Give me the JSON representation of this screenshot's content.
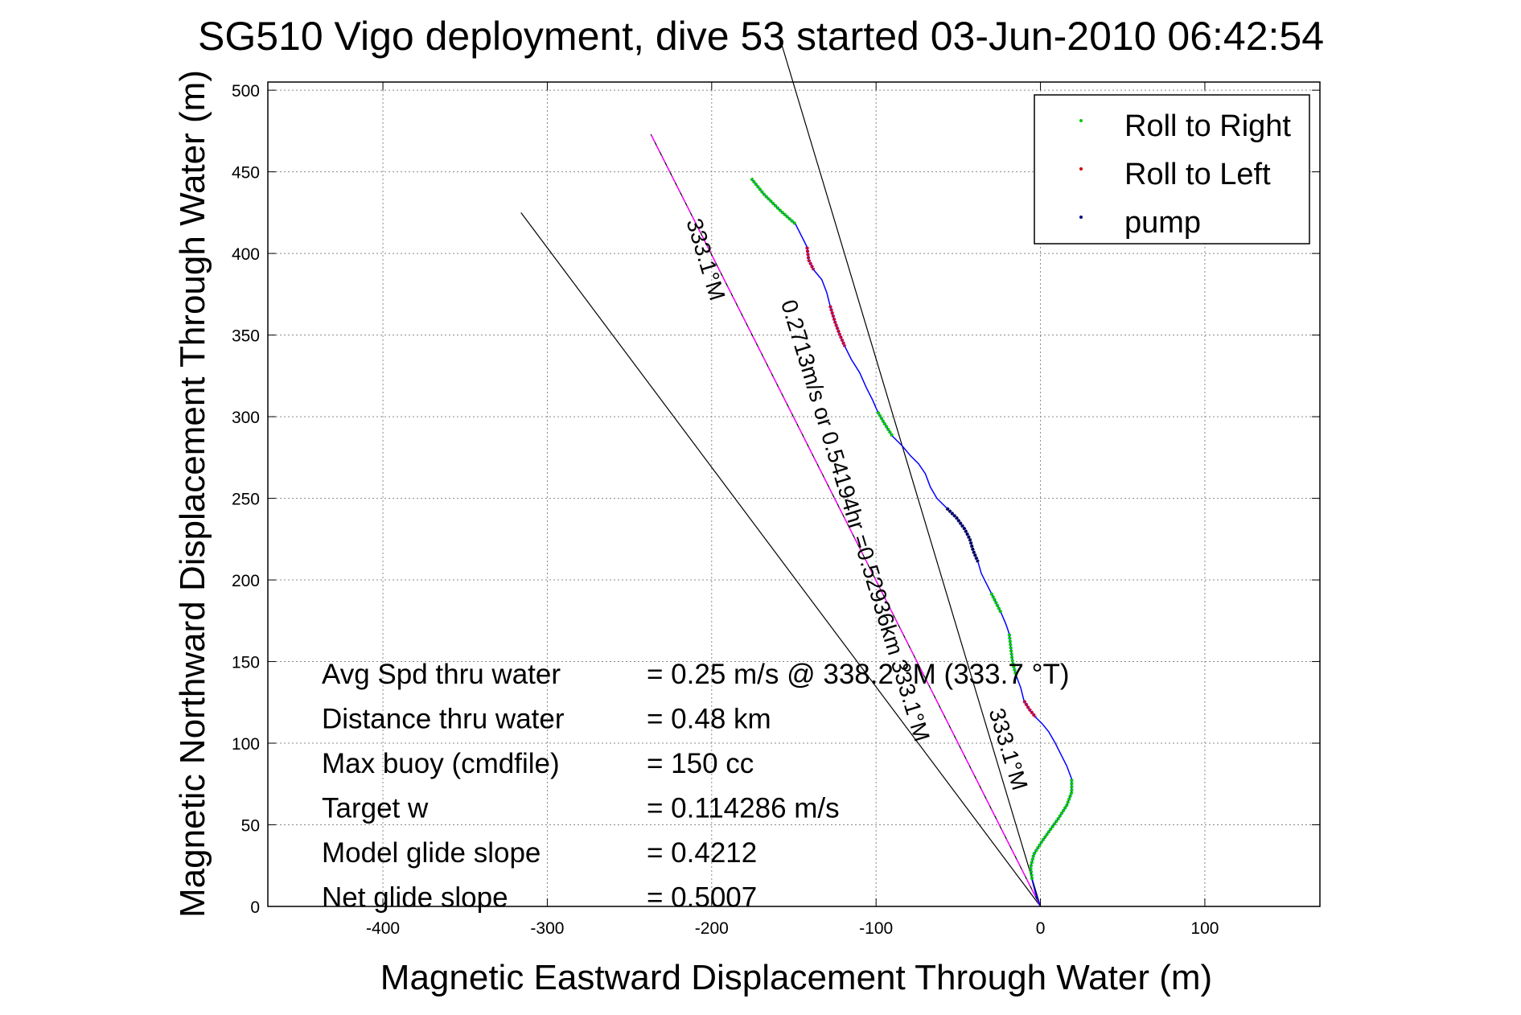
{
  "chart_data": {
    "type": "line",
    "title": "SG510 Vigo deployment, dive 53 started 03-Jun-2010 06:42:54",
    "xlabel": "Magnetic Eastward Displacement Through Water (m)",
    "ylabel": "Magnetic Northward Displacement Through Water (m)",
    "xlim": [
      -470,
      170
    ],
    "ylim": [
      0,
      505
    ],
    "x_ticks": [
      -400,
      -300,
      -200,
      -100,
      0,
      100
    ],
    "x_tick_labels": [
      "-400",
      "-300",
      "-200",
      "-100",
      "0",
      "100"
    ],
    "y_ticks": [
      0,
      50,
      100,
      150,
      200,
      250,
      300,
      350,
      400,
      450,
      500
    ],
    "y_tick_labels": [
      "0",
      "50",
      "100",
      "150",
      "200",
      "250",
      "300",
      "350",
      "400",
      "450",
      "500"
    ],
    "grid": true,
    "legend_position": "top-right",
    "legend": [
      {
        "label": "Roll to Right",
        "color": "#00cc00"
      },
      {
        "label": "Roll to Left",
        "color": "#cc0000"
      },
      {
        "label": "pump",
        "color": "#000080"
      }
    ],
    "track": {
      "color": "#0000ff",
      "points": [
        [
          -176,
          446
        ],
        [
          -168,
          436
        ],
        [
          -158,
          426
        ],
        [
          -149,
          418
        ],
        [
          -145,
          410
        ],
        [
          -142,
          404
        ],
        [
          -141,
          396
        ],
        [
          -138,
          390
        ],
        [
          -133,
          384
        ],
        [
          -130,
          376
        ],
        [
          -128,
          368
        ],
        [
          -125,
          358
        ],
        [
          -122,
          350
        ],
        [
          -119,
          343
        ],
        [
          -115,
          335
        ],
        [
          -110,
          327
        ],
        [
          -106,
          318
        ],
        [
          -102,
          310
        ],
        [
          -99,
          303
        ],
        [
          -95,
          296
        ],
        [
          -90,
          288
        ],
        [
          -84,
          282
        ],
        [
          -79,
          276
        ],
        [
          -74,
          271
        ],
        [
          -70,
          265
        ],
        [
          -67,
          257
        ],
        [
          -63,
          250
        ],
        [
          -57,
          244
        ],
        [
          -51,
          238
        ],
        [
          -46,
          231
        ],
        [
          -43,
          225
        ],
        [
          -41,
          218
        ],
        [
          -38,
          211
        ],
        [
          -36,
          204
        ],
        [
          -33,
          198
        ],
        [
          -30,
          192
        ],
        [
          -27,
          186
        ],
        [
          -24,
          180
        ],
        [
          -21,
          173
        ],
        [
          -19,
          167
        ],
        [
          -18,
          158
        ],
        [
          -17,
          150
        ],
        [
          -15,
          142
        ],
        [
          -12,
          134
        ],
        [
          -10,
          126
        ],
        [
          -7,
          121
        ],
        [
          -3,
          116
        ],
        [
          1,
          112
        ],
        [
          5,
          107
        ],
        [
          9,
          100
        ],
        [
          12,
          94
        ],
        [
          16,
          86
        ],
        [
          19,
          78
        ],
        [
          19,
          70
        ],
        [
          16,
          62
        ],
        [
          11,
          54
        ],
        [
          6,
          47
        ],
        [
          1,
          40
        ],
        [
          -4,
          32
        ],
        [
          -6,
          24
        ],
        [
          -5,
          16
        ],
        [
          -3,
          8
        ],
        [
          0,
          0
        ]
      ],
      "segments": [
        {
          "kind": "roll_right",
          "from": 0,
          "to": 3
        },
        {
          "kind": "roll_left",
          "from": 5,
          "to": 7
        },
        {
          "kind": "roll_left",
          "from": 10,
          "to": 13
        },
        {
          "kind": "roll_right",
          "from": 18,
          "to": 20
        },
        {
          "kind": "pump",
          "from": 27,
          "to": 32
        },
        {
          "kind": "roll_right",
          "from": 35,
          "to": 37
        },
        {
          "kind": "roll_right",
          "from": 39,
          "to": 42
        },
        {
          "kind": "roll_left",
          "from": 44,
          "to": 46
        },
        {
          "kind": "roll_right",
          "from": 52,
          "to": 60
        }
      ]
    },
    "reference_lines": [
      {
        "name": "depth-averaged current",
        "color": "#000000",
        "from": [
          0,
          0
        ],
        "to": [
          -158,
          530
        ]
      },
      {
        "name": "heading line",
        "color": "#000000",
        "from": [
          0,
          0
        ],
        "to": [
          -316,
          425
        ]
      },
      {
        "name": "heading line 2",
        "color": "#000000",
        "from": [
          0,
          0
        ],
        "to": [
          -237,
          473
        ]
      }
    ],
    "heading_line": {
      "color": "#ff00ff",
      "from": [
        0,
        0
      ],
      "to": [
        -237,
        473
      ]
    },
    "line_labels": [
      {
        "text": "0.2713m/s or 0.54194hr =0.52936km 333.1°M",
        "at": [
          -117,
          235
        ],
        "angle_deg": 73
      },
      {
        "text": "333.1°M",
        "at": [
          -208,
          395
        ],
        "angle_deg": 73
      },
      {
        "text": "333.1°M",
        "at": [
          -24,
          95
        ],
        "angle_deg": 73
      }
    ],
    "annotations": [
      {
        "label": "Avg Spd thru water",
        "value": "=  0.25 m/s @ 338.2 °M (333.7 °T)"
      },
      {
        "label": "Distance thru water",
        "value": "=  0.48 km"
      },
      {
        "label": "Max buoy (cmdfile)",
        "value": "= 150 cc"
      },
      {
        "label": "Target w",
        "value": "= 0.114286 m/s"
      },
      {
        "label": "Model glide slope",
        "value": "= 0.4212"
      },
      {
        "label": "Net glide slope",
        "value": "= 0.5007"
      }
    ]
  },
  "colors": {
    "roll_right": "#00cc00",
    "roll_left": "#cc0033",
    "pump": "#000050",
    "track": "#0000ff",
    "heading": "#ff00ff",
    "grid": "#888888"
  }
}
